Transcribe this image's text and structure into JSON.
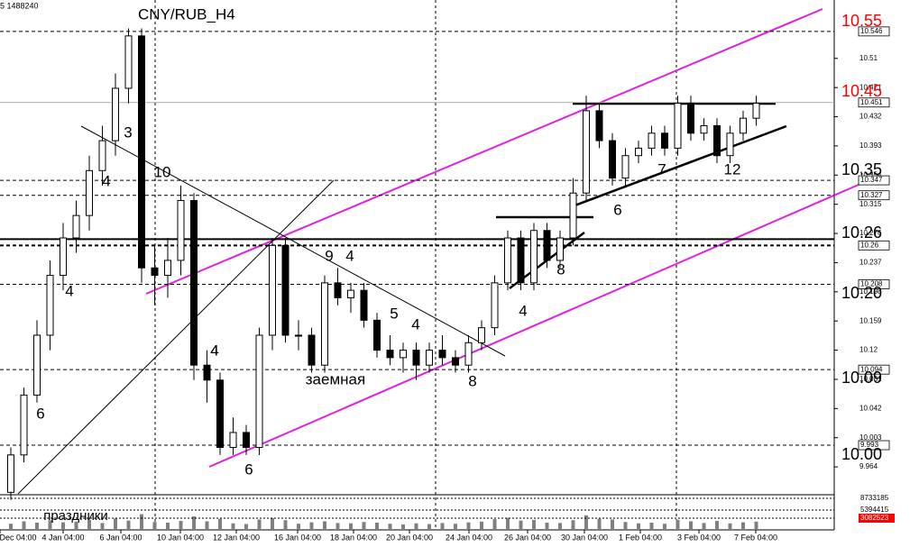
{
  "chart_data": {
    "type": "candlestick",
    "title": "CNY/RUB_H4",
    "header": "5  1488240",
    "ylim": [
      9.928,
      10.588
    ],
    "yticks": [
      10.51,
      10.471,
      10.432,
      10.393,
      10.354,
      10.315,
      10.276,
      10.237,
      10.198,
      10.159,
      10.12,
      10.081,
      10.042,
      10.003,
      9.964
    ],
    "levels": [
      10.546,
      10.451,
      10.347,
      10.327,
      10.26,
      10.208,
      10.094,
      9.993
    ],
    "level_texts": [
      "10.55",
      "10.45",
      "10.35",
      "10.26",
      "10.20",
      "10.09",
      "10.00"
    ],
    "dates": [
      "Dec 04:00",
      "4 Jan 04:00",
      "6 Jan 04:00",
      "10 Jan 04:00",
      "12 Jan 04:00",
      "16 Jan 04:00",
      "18 Jan 04:00",
      "20 Jan 04:00",
      "24 Jan 04:00",
      "26 Jan 04:00",
      "30 Jan 04:00",
      "1 Feb 04:00",
      "3 Feb 04:00",
      "7 Feb 04:00"
    ],
    "annotations": [
      "3",
      "4",
      "10",
      "4",
      "4",
      "6",
      "4",
      "6",
      "9",
      "4",
      "5",
      "4",
      "заемная",
      "8",
      "4",
      "8",
      "6",
      "7",
      "12",
      "праздники"
    ],
    "ohlc": [
      [
        9.93,
        9.99,
        9.92,
        9.98
      ],
      [
        9.98,
        10.07,
        9.97,
        10.06
      ],
      [
        10.06,
        10.16,
        10.05,
        10.14
      ],
      [
        10.14,
        10.24,
        10.12,
        10.22
      ],
      [
        10.22,
        10.29,
        10.2,
        10.27
      ],
      [
        10.27,
        10.32,
        10.25,
        10.3
      ],
      [
        10.3,
        10.38,
        10.28,
        10.36
      ],
      [
        10.36,
        10.42,
        10.34,
        10.4
      ],
      [
        10.4,
        10.49,
        10.38,
        10.47
      ],
      [
        10.47,
        10.55,
        10.45,
        10.54
      ],
      [
        10.54,
        10.55,
        10.21,
        10.23
      ],
      [
        10.23,
        10.26,
        10.18,
        10.22
      ],
      [
        10.22,
        10.27,
        10.19,
        10.24
      ],
      [
        10.24,
        10.34,
        10.22,
        10.32
      ],
      [
        10.32,
        10.33,
        10.08,
        10.1
      ],
      [
        10.1,
        10.12,
        10.05,
        10.08
      ],
      [
        10.08,
        10.09,
        9.98,
        9.99
      ],
      [
        9.99,
        10.03,
        9.98,
        10.01
      ],
      [
        10.01,
        10.02,
        9.98,
        9.99
      ],
      [
        9.99,
        10.15,
        9.98,
        10.14
      ],
      [
        10.14,
        10.27,
        10.12,
        10.26
      ],
      [
        10.26,
        10.27,
        10.13,
        10.14
      ],
      [
        10.14,
        10.16,
        10.12,
        10.14
      ],
      [
        10.14,
        10.15,
        10.09,
        10.1
      ],
      [
        10.1,
        10.22,
        10.09,
        10.21
      ],
      [
        10.21,
        10.23,
        10.18,
        10.19
      ],
      [
        10.19,
        10.21,
        10.17,
        10.2
      ],
      [
        10.2,
        10.21,
        10.15,
        10.16
      ],
      [
        10.16,
        10.17,
        10.11,
        10.12
      ],
      [
        10.12,
        10.14,
        10.1,
        10.11
      ],
      [
        10.11,
        10.13,
        10.09,
        10.12
      ],
      [
        10.12,
        10.13,
        10.08,
        10.1
      ],
      [
        10.1,
        10.13,
        10.09,
        10.12
      ],
      [
        10.12,
        10.14,
        10.1,
        10.11
      ],
      [
        10.11,
        10.12,
        10.09,
        10.1
      ],
      [
        10.1,
        10.14,
        10.09,
        10.13
      ],
      [
        10.13,
        10.16,
        10.12,
        10.15
      ],
      [
        10.15,
        10.22,
        10.14,
        10.21
      ],
      [
        10.21,
        10.28,
        10.2,
        10.27
      ],
      [
        10.27,
        10.28,
        10.2,
        10.21
      ],
      [
        10.21,
        10.29,
        10.2,
        10.28
      ],
      [
        10.28,
        10.29,
        10.23,
        10.24
      ],
      [
        10.24,
        10.28,
        10.23,
        10.27
      ],
      [
        10.27,
        10.35,
        10.26,
        10.33
      ],
      [
        10.33,
        10.46,
        10.32,
        10.44
      ],
      [
        10.44,
        10.45,
        10.39,
        10.4
      ],
      [
        10.4,
        10.41,
        10.34,
        10.35
      ],
      [
        10.35,
        10.39,
        10.34,
        10.38
      ],
      [
        10.38,
        10.4,
        10.37,
        10.39
      ],
      [
        10.39,
        10.42,
        10.38,
        10.41
      ],
      [
        10.41,
        10.42,
        10.38,
        10.39
      ],
      [
        10.39,
        10.46,
        10.38,
        10.45
      ],
      [
        10.45,
        10.46,
        10.4,
        10.41
      ],
      [
        10.41,
        10.43,
        10.4,
        10.42
      ],
      [
        10.42,
        10.43,
        10.37,
        10.38
      ],
      [
        10.38,
        10.42,
        10.37,
        10.41
      ],
      [
        10.41,
        10.44,
        10.4,
        10.43
      ],
      [
        10.43,
        10.46,
        10.42,
        10.45
      ]
    ],
    "volume_ylim": [
      0,
      8733185
    ],
    "volume_ticks": [
      8733185,
      5394415,
      3082523
    ],
    "volume": [
      1500000,
      2200000,
      1800000,
      2500000,
      1900000,
      2100000,
      2600000,
      1700000,
      3000000,
      2400000,
      4200000,
      2000000,
      1800000,
      2300000,
      3600000,
      2200000,
      2900000,
      1600000,
      1400000,
      2700000,
      3100000,
      2500000,
      1500000,
      1900000,
      2200000,
      1700000,
      1600000,
      2000000,
      1800000,
      1500000,
      1300000,
      1600000,
      1400000,
      1700000,
      1500000,
      1900000,
      2100000,
      2800000,
      3200000,
      2400000,
      2600000,
      1800000,
      1700000,
      2500000,
      3900000,
      2900000,
      2700000,
      2000000,
      1600000,
      1800000,
      1500000,
      2600000,
      2200000,
      1700000,
      2300000,
      1600000,
      1900000,
      2100000
    ]
  }
}
